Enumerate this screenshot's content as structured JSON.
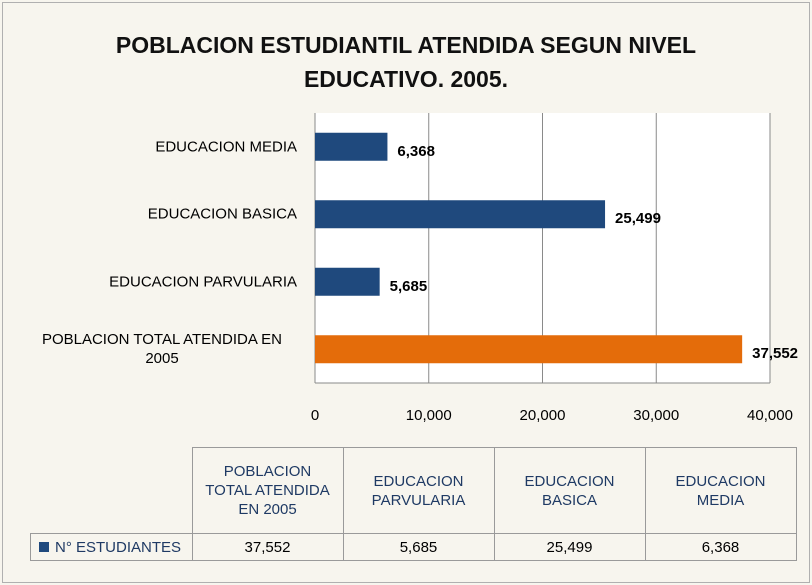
{
  "chart_data": {
    "type": "barh",
    "title": "POBLACION ESTUDIANTIL  ATENDIDA SEGUN NIVEL EDUCATIVO. 2005.",
    "categories": [
      "POBLACION TOTAL ATENDIDA EN 2005",
      "EDUCACION PARVULARIA",
      "EDUCACION BASICA",
      "EDUCACION MEDIA"
    ],
    "series": [
      {
        "name": "N° ESTUDIANTES",
        "color": "#1f497d",
        "colors": [
          "#e46c0a",
          "#1f497d",
          "#1f497d",
          "#1f497d"
        ],
        "values": [
          37552,
          5685,
          25499,
          6368
        ],
        "value_labels": [
          "37,552",
          "5,685",
          "25,499",
          "6,368"
        ]
      }
    ],
    "xlim": [
      0,
      40000
    ],
    "xticks": [
      0,
      {
        "value": 10000,
        "label": "10,000"
      },
      {
        "value": 20000,
        "label": "20,000"
      },
      {
        "value": 30000,
        "label": "30,000"
      },
      {
        "value": 40000,
        "label": "40,000"
      }
    ],
    "grid": true
  }
}
